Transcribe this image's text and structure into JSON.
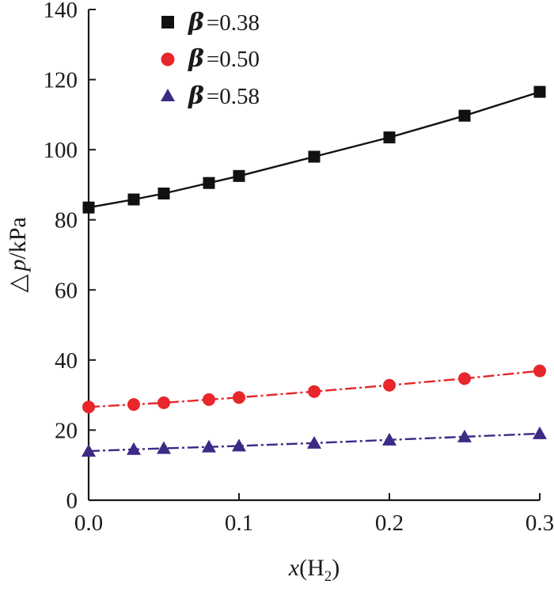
{
  "chart_data": {
    "type": "line",
    "xlabel": "x(H2)",
    "xlabel_parts": {
      "var": "x",
      "open": "(H",
      "sub": "2",
      "close": ")"
    },
    "ylabel": "Δp/kPa",
    "ylabel_parts": {
      "delta": "△",
      "var": "p",
      "unit": "/kPa"
    },
    "xlim": [
      0.0,
      0.3
    ],
    "ylim": [
      0,
      140
    ],
    "xticks": [
      0.0,
      0.1,
      0.2,
      0.3
    ],
    "xtick_labels": [
      "0.0",
      "0.1",
      "0.2",
      "0.3"
    ],
    "yticks": [
      0,
      20,
      40,
      60,
      80,
      100,
      120,
      140
    ],
    "ytick_labels": [
      "0",
      "20",
      "40",
      "60",
      "80",
      "100",
      "120",
      "140"
    ],
    "grid": false,
    "legend_position": "top",
    "x": [
      0.0,
      0.03,
      0.05,
      0.08,
      0.1,
      0.15,
      0.2,
      0.25,
      0.3
    ],
    "series": [
      {
        "name": "β=0.38",
        "legend_symbol": "β",
        "legend_value": "=0.38",
        "marker": "square",
        "color": "#111111",
        "line_style": "solid",
        "values": [
          83.5,
          85.8,
          87.5,
          90.5,
          92.5,
          98.0,
          103.5,
          109.7,
          116.5
        ]
      },
      {
        "name": "β=0.50",
        "legend_symbol": "β",
        "legend_value": "=0.50",
        "marker": "circle",
        "color": "#e8262b",
        "line_style": "dash-dot",
        "values": [
          26.6,
          27.3,
          27.8,
          28.7,
          29.3,
          31.0,
          32.8,
          34.7,
          36.9
        ]
      },
      {
        "name": "β=0.58",
        "legend_symbol": "β",
        "legend_value": "=0.58",
        "marker": "triangle",
        "color": "#3c2a86",
        "line_style": "dash-dot",
        "values": [
          14.0,
          14.5,
          14.8,
          15.2,
          15.5,
          16.3,
          17.2,
          18.1,
          19.0
        ]
      }
    ]
  }
}
